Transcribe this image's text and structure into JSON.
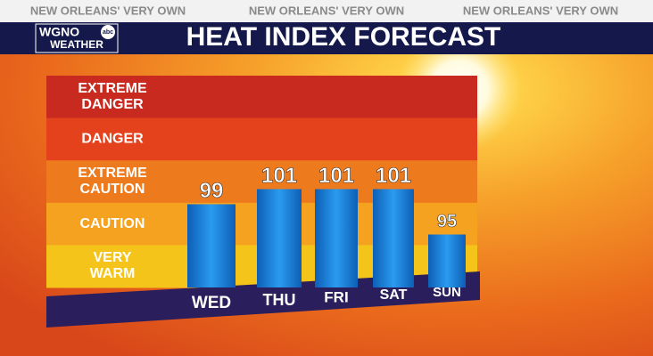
{
  "header": {
    "taglines": [
      "NEW ORLEANS' VERY OWN",
      "NEW ORLEANS' VERY OWN",
      "NEW ORLEANS' VERY OWN"
    ],
    "logo": {
      "call_sign": "WGNO",
      "network": "abc",
      "label": "WEATHER"
    }
  },
  "chart_data": {
    "type": "bar",
    "title": "HEAT INDEX FORECAST",
    "categories": [
      "WED",
      "THU",
      "FRI",
      "SAT",
      "SUN"
    ],
    "values": [
      99,
      101,
      101,
      101,
      95
    ],
    "color": "#1a8be0",
    "ylim": [
      88,
      116
    ],
    "zones": [
      "EXTREME DANGER",
      "DANGER",
      "EXTREME CAUTION",
      "CAUTION",
      "VERY WARM"
    ],
    "zone_colors": [
      "#c92a1f",
      "#e4421c",
      "#ee7a1e",
      "#f4a21f",
      "#f5c41a"
    ]
  }
}
